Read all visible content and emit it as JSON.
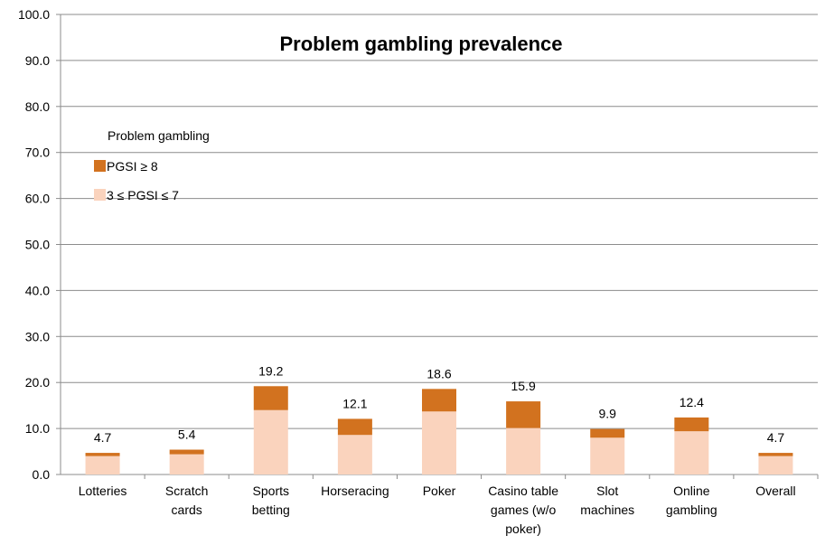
{
  "chart_data": {
    "type": "bar",
    "stacked": true,
    "title": "Problem gambling prevalence",
    "xlabel": "",
    "ylabel": "",
    "ylim": [
      0,
      100
    ],
    "yticks": [
      "0.0",
      "10.0",
      "20.0",
      "30.0",
      "40.0",
      "50.0",
      "60.0",
      "70.0",
      "80.0",
      "90.0",
      "100.0"
    ],
    "grid": true,
    "categories": [
      [
        "Lotteries"
      ],
      [
        "Scratch",
        "cards"
      ],
      [
        "Sports",
        "betting"
      ],
      [
        "Horseracing"
      ],
      [
        "Poker"
      ],
      [
        "Casino table",
        "games (w/o",
        "poker)"
      ],
      [
        "Slot",
        "machines"
      ],
      [
        "Online",
        "gambling"
      ],
      [
        "Overall"
      ]
    ],
    "legend": {
      "title": "Problem gambling",
      "position": "top-left"
    },
    "series": [
      {
        "name": "3 ≤ PGSI ≤ 7",
        "color": "#fad3bd",
        "values": [
          4.0,
          4.4,
          14.0,
          8.6,
          13.7,
          10.1,
          8.0,
          9.4,
          4.0
        ]
      },
      {
        "name": "PGSI ≥ 8",
        "color": "#d2721f",
        "values": [
          0.7,
          1.0,
          5.2,
          3.5,
          4.9,
          5.8,
          1.9,
          3.0,
          0.7
        ]
      }
    ],
    "totals": [
      "4.7",
      "5.4",
      "19.2",
      "12.1",
      "18.6",
      "15.9",
      "9.9",
      "12.4",
      "4.7"
    ]
  }
}
